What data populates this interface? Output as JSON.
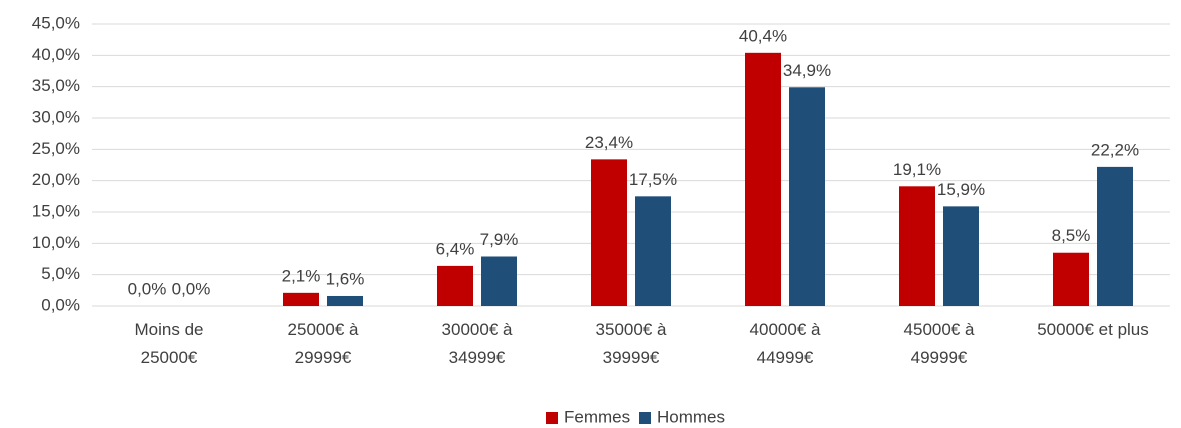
{
  "chart_data": {
    "type": "bar",
    "categories": [
      "Moins de\n25000€",
      "25000€ à\n29999€",
      "30000€ à\n34999€",
      "35000€ à\n39999€",
      "40000€ à\n44999€",
      "45000€ à\n49999€",
      "50000€ et plus"
    ],
    "series": [
      {
        "name": "Femmes",
        "color": "#c00000",
        "values": [
          0.0,
          2.1,
          6.4,
          23.4,
          40.4,
          19.1,
          8.5
        ],
        "value_labels": [
          "0,0%",
          "2,1%",
          "6,4%",
          "23,4%",
          "40,4%",
          "19,1%",
          "8,5%"
        ]
      },
      {
        "name": "Hommes",
        "color": "#1f4e79",
        "values": [
          0.0,
          1.6,
          7.9,
          17.5,
          34.9,
          15.9,
          22.2
        ],
        "value_labels": [
          "0,0%",
          "1,6%",
          "7,9%",
          "17,5%",
          "34,9%",
          "15,9%",
          "22,2%"
        ]
      }
    ],
    "ylim": [
      0,
      45
    ],
    "yticks": [
      {
        "value": 0,
        "label": "0,0%"
      },
      {
        "value": 5,
        "label": "5,0%"
      },
      {
        "value": 10,
        "label": "10,0%"
      },
      {
        "value": 15,
        "label": "15,0%"
      },
      {
        "value": 20,
        "label": "20,0%"
      },
      {
        "value": 25,
        "label": "25,0%"
      },
      {
        "value": 30,
        "label": "30,0%"
      },
      {
        "value": 35,
        "label": "35,0%"
      },
      {
        "value": 40,
        "label": "40,0%"
      },
      {
        "value": 45,
        "label": "45,0%"
      }
    ],
    "grid": true,
    "legend": "bottom"
  }
}
